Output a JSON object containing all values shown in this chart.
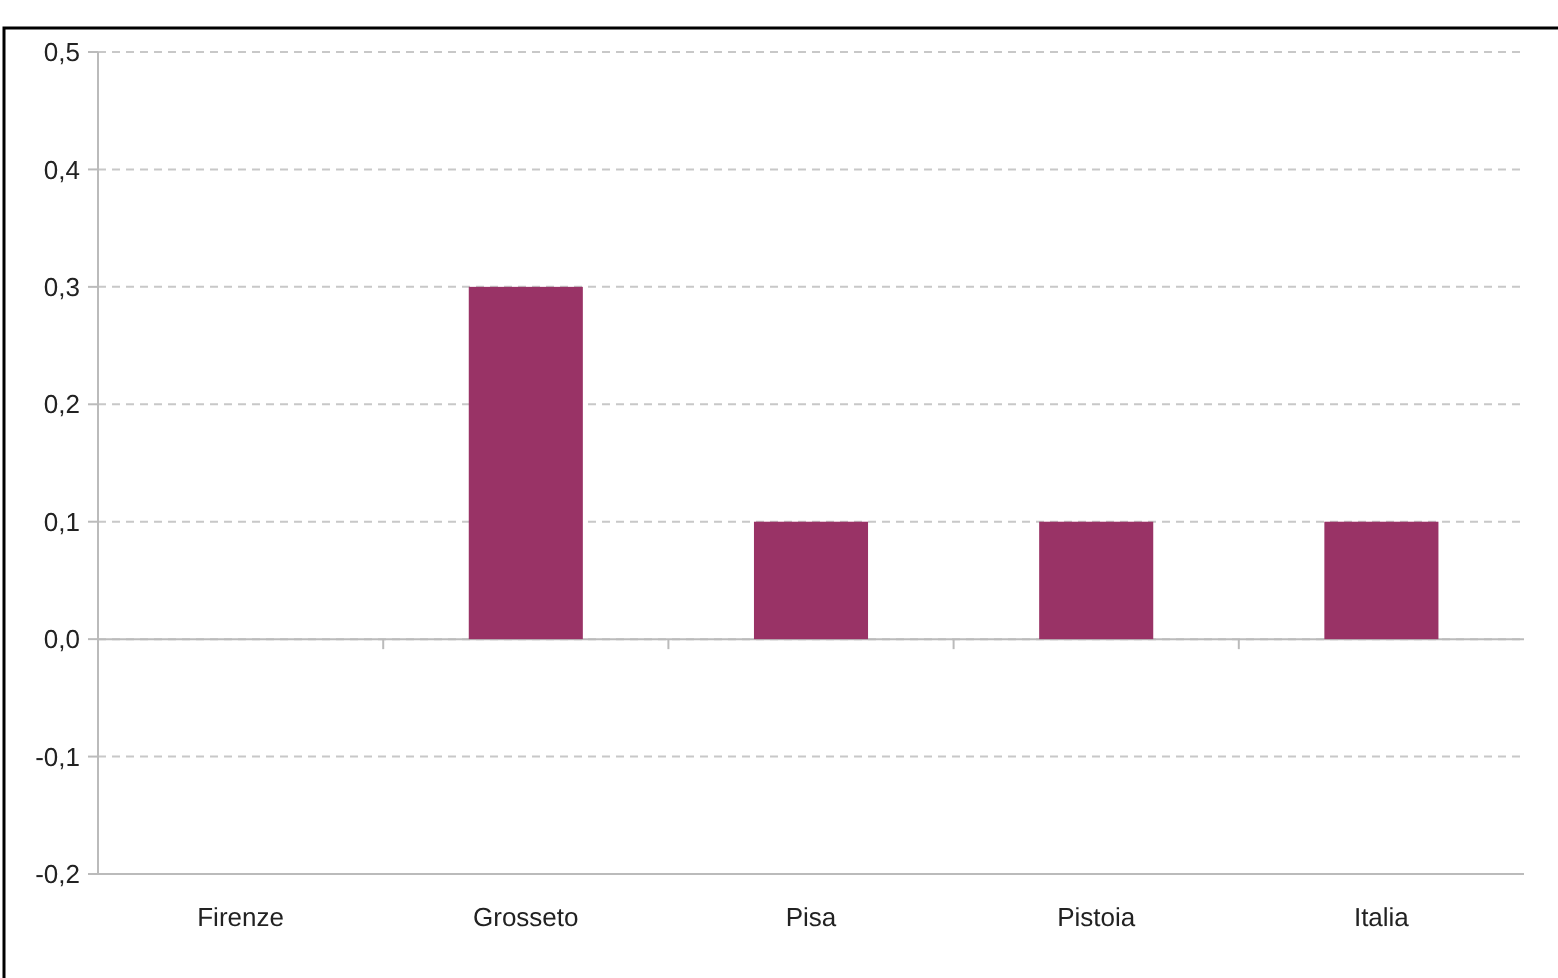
{
  "chart_data": {
    "type": "bar",
    "categories": [
      "Firenze",
      "Grosseto",
      "Pisa",
      "Pistoia",
      "Italia"
    ],
    "values": [
      0,
      0.3,
      0.1,
      0.1,
      0.1
    ],
    "color": "#993366",
    "ylim": [
      -0.2,
      0.5
    ],
    "yticks": [
      {
        "value": -0.2,
        "label": "-0,2"
      },
      {
        "value": -0.1,
        "label": "-0,1"
      },
      {
        "value": 0,
        "label": "0,0"
      },
      {
        "value": 0.1,
        "label": "0,1"
      },
      {
        "value": 0.2,
        "label": "0,2"
      },
      {
        "value": 0.3,
        "label": "0,3"
      },
      {
        "value": 0.4,
        "label": "0,4"
      },
      {
        "value": 0.5,
        "label": "0,5"
      }
    ],
    "grid": "y"
  }
}
